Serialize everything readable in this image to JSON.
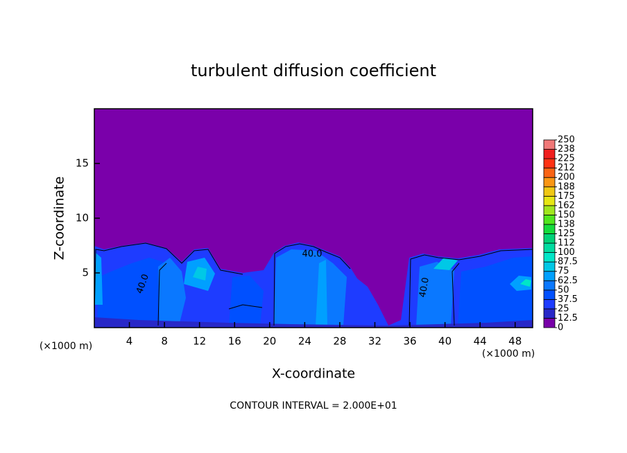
{
  "chart_data": {
    "type": "contour",
    "title": "turbulent diffusion coefficient",
    "x_label": "X-coordinate",
    "y_label": "Z-coordinate",
    "x_unit": "(×1000 m)",
    "footer": "CONTOUR INTERVAL = 2.000E+01",
    "annotations": [
      "40.0",
      "40.0",
      "40.0"
    ],
    "xlim": [
      0,
      50
    ],
    "xticks": [
      4,
      8,
      12,
      16,
      20,
      24,
      28,
      32,
      36,
      40,
      44,
      48
    ],
    "ylim": [
      0,
      20
    ],
    "yticks": [
      5,
      10,
      15
    ],
    "background_color": "#7a00aa",
    "colorbar": {
      "levels": [
        0,
        12.5,
        25,
        37.5,
        50,
        62.5,
        75,
        87.5,
        100,
        {
          "value": 112.5,
          "label": "112"
        },
        125,
        {
          "value": 137.5,
          "label": "138"
        },
        150,
        {
          "value": 162.5,
          "label": "162"
        },
        175,
        {
          "value": 187.5,
          "label": "188"
        },
        200,
        {
          "value": 212.5,
          "label": "212"
        },
        225,
        {
          "value": 237.5,
          "label": "238"
        },
        250
      ],
      "colors": [
        "#7800a8",
        "#2828c8",
        "#1e3cff",
        "#0050ff",
        "#0a78ff",
        "#00a0ff",
        "#00c8e6",
        "#00e6c8",
        "#00dca0",
        "#00d278",
        "#14dc3c",
        "#50e61e",
        "#a0e61e",
        "#e6e614",
        "#f0c814",
        "#fa9614",
        "#fa6414",
        "#ff3214",
        "#f01e1e",
        "#f07878"
      ]
    }
  }
}
